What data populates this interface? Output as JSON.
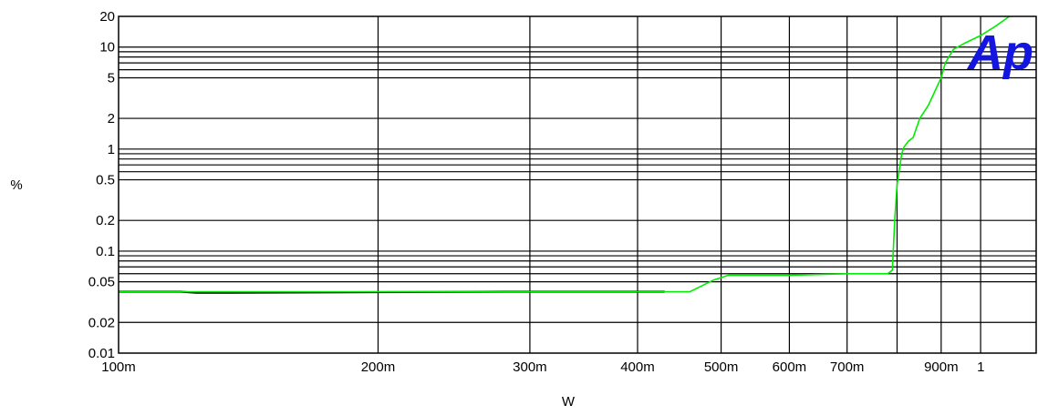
{
  "chart_data": {
    "type": "line",
    "title": "",
    "xlabel": "W",
    "ylabel": "%",
    "x_scale": "log",
    "y_scale": "log",
    "xlim": [
      0.1,
      1.16
    ],
    "ylim": [
      0.01,
      20
    ],
    "grid": true,
    "x_ticks": [
      {
        "value": 0.1,
        "label": "100m"
      },
      {
        "value": 0.2,
        "label": "200m"
      },
      {
        "value": 0.3,
        "label": "300m"
      },
      {
        "value": 0.4,
        "label": "400m"
      },
      {
        "value": 0.5,
        "label": "500m"
      },
      {
        "value": 0.6,
        "label": "600m"
      },
      {
        "value": 0.7,
        "label": "700m"
      },
      {
        "value": 0.9,
        "label": "900m"
      },
      {
        "value": 1.0,
        "label": "1"
      }
    ],
    "x_grid": [
      0.2,
      0.3,
      0.4,
      0.5,
      0.6,
      0.7,
      0.8,
      0.9,
      1.0
    ],
    "y_ticks": [
      {
        "value": 0.01,
        "label": "0.01"
      },
      {
        "value": 0.02,
        "label": "0.02"
      },
      {
        "value": 0.05,
        "label": "0.05"
      },
      {
        "value": 0.1,
        "label": "0.1"
      },
      {
        "value": 0.2,
        "label": "0.2"
      },
      {
        "value": 0.5,
        "label": "0.5"
      },
      {
        "value": 1,
        "label": "1"
      },
      {
        "value": 2,
        "label": "2"
      },
      {
        "value": 5,
        "label": "5"
      },
      {
        "value": 10,
        "label": "10"
      },
      {
        "value": 20,
        "label": "20"
      }
    ],
    "y_grid": [
      0.02,
      0.05,
      0.06,
      0.07,
      0.08,
      0.09,
      0.1,
      0.2,
      0.5,
      0.6,
      0.7,
      0.8,
      0.9,
      1,
      2,
      5,
      6,
      7,
      8,
      9,
      10
    ],
    "series": [
      {
        "color": "#00ee00",
        "points": [
          [
            0.1,
            0.04
          ],
          [
            0.2,
            0.04
          ],
          [
            0.3,
            0.04
          ],
          [
            0.4,
            0.04
          ],
          [
            0.46,
            0.04
          ],
          [
            0.49,
            0.052
          ],
          [
            0.51,
            0.058
          ],
          [
            0.6,
            0.058
          ],
          [
            0.7,
            0.06
          ],
          [
            0.78,
            0.06
          ],
          [
            0.79,
            0.065
          ],
          [
            0.795,
            0.2
          ],
          [
            0.8,
            0.45
          ],
          [
            0.81,
            0.9
          ],
          [
            0.815,
            1.05
          ],
          [
            0.825,
            1.2
          ],
          [
            0.835,
            1.3
          ],
          [
            0.85,
            2.0
          ],
          [
            0.87,
            2.7
          ],
          [
            0.9,
            5.0
          ],
          [
            0.91,
            7.0
          ],
          [
            0.93,
            9.5
          ],
          [
            0.96,
            11
          ],
          [
            1.0,
            13
          ],
          [
            1.04,
            16
          ],
          [
            1.08,
            20
          ]
        ]
      },
      {
        "color": "#000000",
        "points": [
          [
            0.1,
            0.04
          ],
          [
            0.118,
            0.04
          ],
          [
            0.123,
            0.039
          ],
          [
            0.13,
            0.039
          ],
          [
            0.28,
            0.04
          ],
          [
            0.43,
            0.04
          ]
        ]
      }
    ],
    "logo": "Ap",
    "logo_color": "#1515e0"
  }
}
